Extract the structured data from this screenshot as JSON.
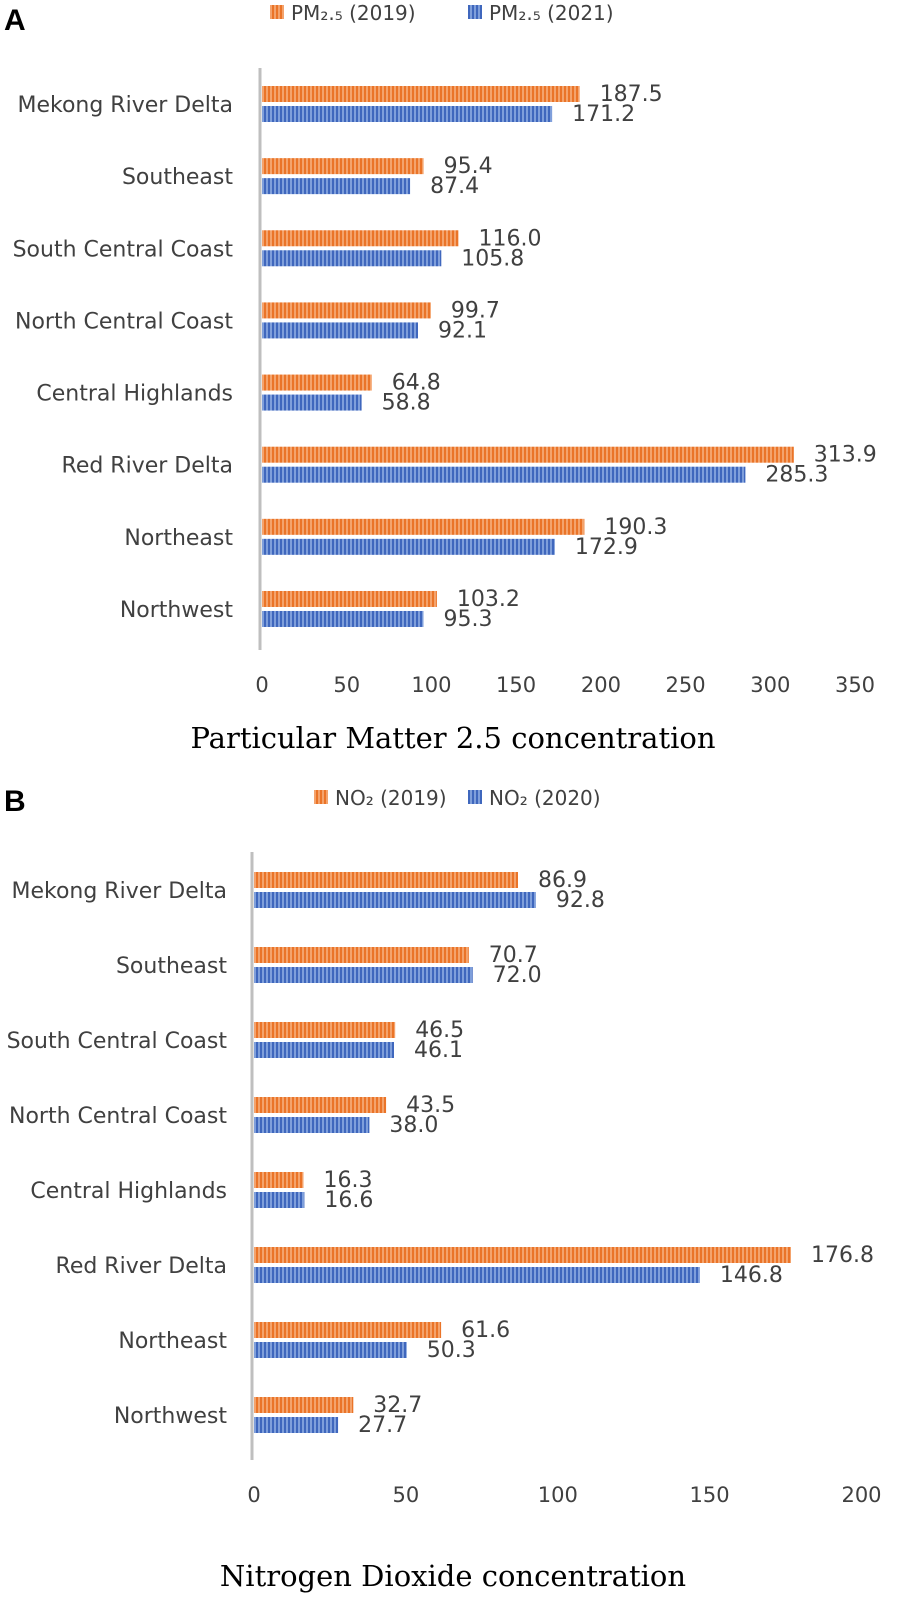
{
  "chart_data": [
    {
      "type": "bar",
      "orientation": "horizontal",
      "panel": "A",
      "categories": [
        "Mekong River Delta",
        "Southeast",
        "South Central Coast",
        "North Central Coast",
        "Central Highlands",
        "Red River Delta",
        "Northeast",
        "Northwest"
      ],
      "series": [
        {
          "name": "PM₂.₅ (2019)",
          "color": "#ed7d31",
          "values": [
            187.5,
            95.4,
            116.0,
            99.7,
            64.8,
            313.9,
            190.3,
            103.2
          ],
          "labels": [
            "187.5",
            "95.4",
            "116.0",
            "99.7",
            "64.8",
            "313.9",
            "190.3",
            "103.2"
          ]
        },
        {
          "name": "PM₂.₅ (2021)",
          "color": "#4472c4",
          "values": [
            171.2,
            87.4,
            105.8,
            92.1,
            58.8,
            285.3,
            172.9,
            95.3
          ],
          "labels": [
            "171.2",
            "87.4",
            "105.8",
            "92.1",
            "58.8",
            "285.3",
            "172.9",
            "95.3"
          ]
        }
      ],
      "xticks": [
        "0",
        "50",
        "100",
        "150",
        "200",
        "250",
        "300",
        "350"
      ],
      "xlim": [
        0,
        350
      ],
      "xlabel": "Particular Matter 2.5 concentration",
      "legend": "top",
      "grid": false
    },
    {
      "type": "bar",
      "orientation": "horizontal",
      "panel": "B",
      "categories": [
        "Mekong River Delta",
        "Southeast",
        "South Central Coast",
        "North Central Coast",
        "Central Highlands",
        "Red River Delta",
        "Northeast",
        "Northwest"
      ],
      "series": [
        {
          "name": "NO₂ (2019)",
          "color": "#ed7d31",
          "values": [
            86.9,
            70.7,
            46.5,
            43.5,
            16.3,
            176.8,
            61.6,
            32.7
          ],
          "labels": [
            "86.9",
            "70.7",
            "46.5",
            "43.5",
            "16.3",
            "176.8",
            "61.6",
            "32.7"
          ]
        },
        {
          "name": "NO₂ (2020)",
          "color": "#4472c4",
          "values": [
            92.8,
            72.0,
            46.1,
            38.0,
            16.6,
            146.8,
            50.3,
            27.7
          ],
          "labels": [
            "92.8",
            "72.0",
            "46.1",
            "38.0",
            "16.6",
            "146.8",
            "50.3",
            "27.7"
          ]
        }
      ],
      "xticks": [
        "0",
        "50",
        "100",
        "150",
        "200"
      ],
      "xlim": [
        0,
        200
      ],
      "xlabel": "Nitrogen Dioxide concentration",
      "legend": "top",
      "grid": false
    }
  ]
}
